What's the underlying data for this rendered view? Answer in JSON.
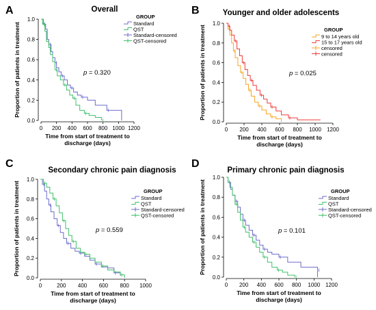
{
  "chart_data": [
    {
      "type": "line",
      "letter": "A",
      "title": "Overall",
      "xlabel_line1": "Time from start of treatment to",
      "xlabel_line2": "discharge (days)",
      "ylabel": "Proportion of patients in treatment",
      "xlim": [
        0,
        1200
      ],
      "ylim": [
        0,
        1.0
      ],
      "xticks": [
        "0",
        "200",
        "400",
        "600",
        "800",
        "1000",
        "1200"
      ],
      "yticks": [
        "0.0",
        "0.2",
        "0.4",
        "0.6",
        "0.8",
        "1.0"
      ],
      "legend_title": "GROUP",
      "legend": [
        {
          "label": "Standard",
          "color": "#6b6bcc",
          "kind": "line"
        },
        {
          "label": "QST",
          "color": "#3fbf6a",
          "kind": "line"
        },
        {
          "label": "Standard-censored",
          "color": "#6b6bcc",
          "kind": "cross"
        },
        {
          "label": "QST-censored",
          "color": "#3fbf6a",
          "kind": "cross"
        }
      ],
      "p_label": "p",
      "p_text": " = 0.320",
      "series": [
        {
          "name": "Standard",
          "color": "#6b6bcc",
          "x": [
            0,
            30,
            60,
            80,
            100,
            130,
            150,
            180,
            200,
            230,
            260,
            300,
            340,
            380,
            420,
            470,
            520,
            600,
            700,
            850,
            1040,
            1040
          ],
          "y": [
            1.0,
            0.95,
            0.9,
            0.8,
            0.75,
            0.68,
            0.62,
            0.57,
            0.52,
            0.48,
            0.44,
            0.4,
            0.35,
            0.32,
            0.28,
            0.25,
            0.23,
            0.2,
            0.15,
            0.1,
            0.07,
            0.0
          ]
        },
        {
          "name": "QST",
          "color": "#3fbf6a",
          "x": [
            0,
            20,
            50,
            70,
            100,
            120,
            150,
            180,
            210,
            250,
            290,
            330,
            370,
            410,
            450,
            500,
            560,
            620,
            700,
            780
          ],
          "y": [
            1.0,
            0.95,
            0.88,
            0.78,
            0.72,
            0.65,
            0.58,
            0.5,
            0.44,
            0.4,
            0.35,
            0.3,
            0.25,
            0.22,
            0.15,
            0.1,
            0.07,
            0.05,
            0.03,
            0.0
          ]
        }
      ]
    },
    {
      "type": "line",
      "letter": "B",
      "title": "Younger and older adolescents",
      "xlabel_line1": "Time from start of treatment to",
      "xlabel_line2": "discharge (days)",
      "ylabel": "Proportion of patients in treatment",
      "xlim": [
        0,
        1200
      ],
      "ylim": [
        0,
        1.0
      ],
      "xticks": [
        "0",
        "200",
        "400",
        "600",
        "800",
        "1000",
        "1200"
      ],
      "yticks": [
        "0.0",
        "0.2",
        "0.4",
        "0.6",
        "0.8",
        "1.0"
      ],
      "legend_title": "GROUP",
      "legend": [
        {
          "label": "9 to 14 years old",
          "color": "#f5a623",
          "kind": "line"
        },
        {
          "label": "15 to 17 years old",
          "color": "#ef3b3b",
          "kind": "line"
        },
        {
          "label": "censored",
          "color": "#f5a623",
          "kind": "cross"
        },
        {
          "label": "censored",
          "color": "#ef3b3b",
          "kind": "cross"
        }
      ],
      "p_label": "p",
      "p_text": " = 0.025",
      "series": [
        {
          "name": "9 to 14 years old",
          "color": "#f5a623",
          "x": [
            0,
            20,
            40,
            60,
            80,
            100,
            130,
            160,
            190,
            220,
            250,
            280,
            320,
            360,
            400,
            450,
            500,
            560,
            620
          ],
          "y": [
            1.0,
            0.94,
            0.88,
            0.8,
            0.72,
            0.65,
            0.57,
            0.5,
            0.44,
            0.38,
            0.32,
            0.26,
            0.2,
            0.16,
            0.12,
            0.08,
            0.05,
            0.03,
            0.0
          ]
        },
        {
          "name": "15 to 17 years old",
          "color": "#ef3b3b",
          "x": [
            0,
            20,
            40,
            60,
            90,
            120,
            150,
            180,
            210,
            240,
            270,
            300,
            340,
            380,
            420,
            460,
            500,
            560,
            620,
            700,
            800,
            1060
          ],
          "y": [
            1.0,
            0.97,
            0.93,
            0.88,
            0.82,
            0.74,
            0.67,
            0.6,
            0.53,
            0.47,
            0.42,
            0.37,
            0.32,
            0.27,
            0.23,
            0.19,
            0.15,
            0.11,
            0.07,
            0.04,
            0.02,
            0.02
          ]
        }
      ]
    },
    {
      "type": "line",
      "letter": "C",
      "title": "Secondary chronic pain diagnosis",
      "xlabel_line1": "Time from start of treatment to",
      "xlabel_line2": "discharge (days)",
      "ylabel": "Proportion of patients in treatment",
      "xlim": [
        0,
        1000
      ],
      "ylim": [
        0,
        1.0
      ],
      "xticks": [
        "0",
        "200",
        "400",
        "600",
        "800",
        "1000"
      ],
      "yticks": [
        "0.0",
        "0.2",
        "0.4",
        "0.6",
        "0.8",
        "1.0"
      ],
      "legend_title": "GROUP",
      "legend": [
        {
          "label": "Standard",
          "color": "#6b6bcc",
          "kind": "line"
        },
        {
          "label": "QST",
          "color": "#3fbf6a",
          "kind": "line"
        },
        {
          "label": "Standard-censored",
          "color": "#6b6bcc",
          "kind": "cross"
        },
        {
          "label": "QST-censored",
          "color": "#3fbf6a",
          "kind": "cross"
        }
      ],
      "p_label": "p",
      "p_text": " = 0.559",
      "series": [
        {
          "name": "Standard",
          "color": "#6b6bcc",
          "x": [
            0,
            20,
            40,
            60,
            80,
            100,
            130,
            160,
            190,
            220,
            250,
            290,
            330,
            370,
            420,
            470,
            520,
            580,
            640,
            700,
            760
          ],
          "y": [
            1.0,
            0.95,
            0.88,
            0.8,
            0.74,
            0.67,
            0.6,
            0.53,
            0.46,
            0.4,
            0.35,
            0.3,
            0.27,
            0.25,
            0.22,
            0.18,
            0.14,
            0.11,
            0.1,
            0.05,
            0.02
          ]
        },
        {
          "name": "QST",
          "color": "#3fbf6a",
          "x": [
            0,
            30,
            60,
            90,
            120,
            150,
            180,
            210,
            240,
            270,
            300,
            340,
            380,
            420,
            470,
            520,
            580,
            640,
            700,
            760,
            800
          ],
          "y": [
            1.0,
            0.96,
            0.92,
            0.86,
            0.8,
            0.73,
            0.66,
            0.58,
            0.5,
            0.43,
            0.37,
            0.3,
            0.26,
            0.24,
            0.2,
            0.16,
            0.12,
            0.08,
            0.06,
            0.03,
            0.0
          ]
        }
      ]
    },
    {
      "type": "line",
      "letter": "D",
      "title": "Primary chronic pain diagnosis",
      "xlabel_line1": "Time from start of treatment to",
      "xlabel_line2": "discharge (days)",
      "ylabel": "Proportion of patients in treatment",
      "xlim": [
        0,
        1200
      ],
      "ylim": [
        0,
        1.0
      ],
      "xticks": [
        "0",
        "200",
        "400",
        "600",
        "800",
        "1000",
        "1200"
      ],
      "yticks": [
        "0.0",
        "0.2",
        "0.4",
        "0.6",
        "0.8",
        "1.0"
      ],
      "legend_title": "GROUP",
      "legend": [
        {
          "label": "Standard",
          "color": "#6b6bcc",
          "kind": "line"
        },
        {
          "label": "QST",
          "color": "#3fbf6a",
          "kind": "line"
        },
        {
          "label": "Standard-censored",
          "color": "#6b6bcc",
          "kind": "cross"
        },
        {
          "label": "QST-censored",
          "color": "#3fbf6a",
          "kind": "cross"
        }
      ],
      "p_label": "p",
      "p_text": " = 0.101",
      "series": [
        {
          "name": "Standard",
          "color": "#6b6bcc",
          "x": [
            0,
            20,
            50,
            70,
            100,
            130,
            160,
            190,
            220,
            260,
            300,
            340,
            380,
            420,
            470,
            520,
            600,
            700,
            850,
            1040,
            1040
          ],
          "y": [
            1.0,
            0.95,
            0.88,
            0.82,
            0.76,
            0.7,
            0.63,
            0.57,
            0.52,
            0.47,
            0.42,
            0.37,
            0.32,
            0.28,
            0.25,
            0.23,
            0.2,
            0.15,
            0.1,
            0.07,
            0.0
          ]
        },
        {
          "name": "QST",
          "color": "#3fbf6a",
          "x": [
            0,
            20,
            40,
            70,
            100,
            130,
            160,
            190,
            220,
            260,
            300,
            340,
            380,
            420,
            470,
            520,
            580,
            640,
            700,
            780
          ],
          "y": [
            1.0,
            0.95,
            0.9,
            0.82,
            0.73,
            0.65,
            0.57,
            0.5,
            0.45,
            0.4,
            0.35,
            0.3,
            0.25,
            0.2,
            0.15,
            0.1,
            0.07,
            0.05,
            0.02,
            0.0
          ]
        }
      ]
    }
  ]
}
